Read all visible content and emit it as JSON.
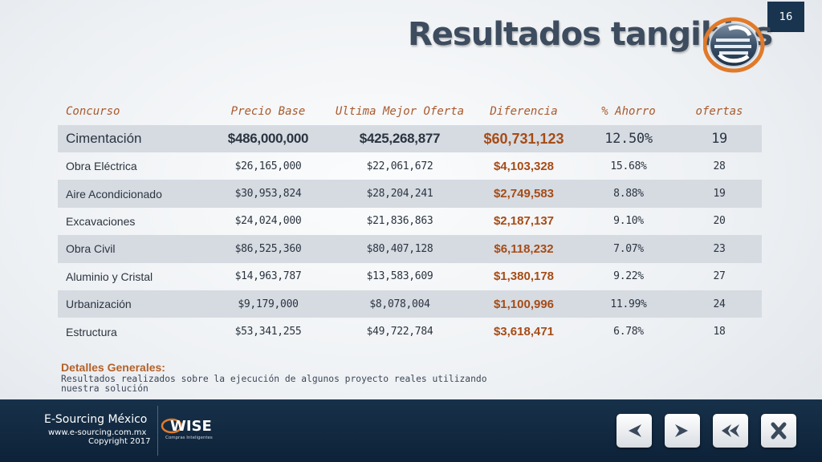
{
  "slide_number": "16",
  "title": "Resultados tangibles",
  "logo_letter": "e",
  "table": {
    "headers": [
      "Concurso",
      "Precio Base",
      "Ultima Mejor Oferta",
      "Diferencia",
      "% Ahorro",
      "ofertas"
    ],
    "rows": [
      [
        "Cimentación",
        "$486,000,000",
        "$425,268,877",
        "$60,731,123",
        "12.50%",
        "19"
      ],
      [
        "Obra Eléctrica",
        "$26,165,000",
        "$22,061,672",
        "$4,103,328",
        "15.68%",
        "28"
      ],
      [
        "Aire Acondicionado",
        "$30,953,824",
        "$28,204,241",
        "$2,749,583",
        "8.88%",
        "19"
      ],
      [
        "Excavaciones",
        "$24,024,000",
        "$21,836,863",
        "$2,187,137",
        "9.10%",
        "20"
      ],
      [
        "Obra Civil",
        "$86,525,360",
        "$80,407,128",
        "$6,118,232",
        "7.07%",
        "23"
      ],
      [
        "Aluminio y Cristal",
        "$14,963,787",
        "$13,583,609",
        "$1,380,178",
        "9.22%",
        "27"
      ],
      [
        "Urbanización",
        "$9,179,000",
        "$8,078,004",
        "$1,100,996",
        "11.99%",
        "24"
      ],
      [
        "Estructura",
        "$53,341,255",
        "$49,722,784",
        "$3,618,471",
        "6.78%",
        "18"
      ]
    ]
  },
  "details": {
    "heading": "Detalles Generales:",
    "body": "Resultados realizados sobre la ejecución de algunos  proyecto reales utilizando nuestra solución"
  },
  "footer": {
    "company": "E-Sourcing México",
    "website": "www.e-sourcing.com.mx",
    "copyright": "Copyright 2017",
    "partner_logo": "WISE",
    "partner_tagline": "Compras Inteligentes"
  },
  "nav": {
    "buttons": [
      {
        "name": "previous-button",
        "icon": "chevron-left-icon"
      },
      {
        "name": "next-button",
        "icon": "chevron-right-icon"
      },
      {
        "name": "first-slide-button",
        "icon": "double-chevron-left-icon"
      },
      {
        "name": "close-button",
        "icon": "close-icon"
      }
    ]
  },
  "colors": {
    "header_text": "#a9592c",
    "difference_text": "#a64c16",
    "row_shade": "#d6dbe2",
    "footer_bg": "#17314a",
    "slide_number_bg": "#19344f"
  }
}
